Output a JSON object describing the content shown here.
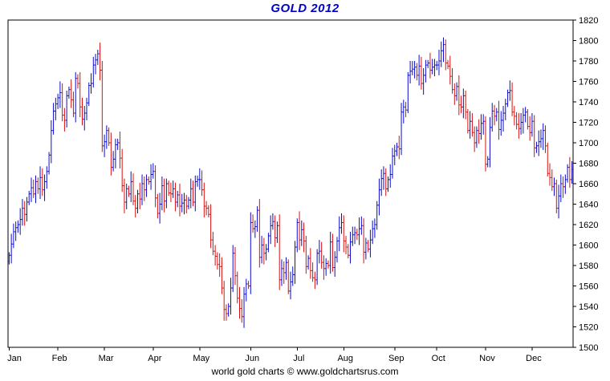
{
  "title": "GOLD 2012",
  "footer": "world gold charts © www.goldchartsrus.com",
  "colors": {
    "title": "#0000cc",
    "up_bar": "#0a0ad0",
    "down_bar": "#d80f0f",
    "axis_text": "#000000",
    "border": "#000000",
    "background": "#ffffff"
  },
  "chart_data": {
    "type": "bar",
    "style": "daily-ohlc-bars",
    "title": "GOLD 2012",
    "notes": "Daily gold price OHLC bars for 2012; blue = up day, red = down day; y-axis (right side) in USD/oz; values estimated from gridline scale 1500-1820 step 20",
    "legend": "none",
    "grid": "off",
    "x_axis": {
      "labels": [
        "Jan",
        "Feb",
        "Mar",
        "Apr",
        "May",
        "Jun",
        "Jul",
        "Aug",
        "Sep",
        "Oct",
        "Nov",
        "Dec"
      ],
      "month_start_index": [
        0,
        22,
        43,
        65,
        86,
        109,
        130,
        151,
        174,
        193,
        215,
        236
      ]
    },
    "y_axis": {
      "side": "right",
      "min": 1500,
      "max": 1820,
      "tick_step": 20,
      "ticks": [
        1500,
        1520,
        1540,
        1560,
        1580,
        1600,
        1620,
        1640,
        1660,
        1680,
        1700,
        1720,
        1740,
        1760,
        1780,
        1800,
        1820
      ]
    },
    "close": [
      1590,
      1601,
      1613,
      1617,
      1620,
      1625,
      1636,
      1630,
      1642,
      1650,
      1656,
      1650,
      1662,
      1655,
      1666,
      1654,
      1662,
      1672,
      1688,
      1712,
      1731,
      1738,
      1744,
      1749,
      1727,
      1722,
      1746,
      1752,
      1742,
      1729,
      1763,
      1758,
      1735,
      1723,
      1729,
      1739,
      1756,
      1758,
      1776,
      1781,
      1787,
      1771,
      1697,
      1701,
      1712,
      1700,
      1676,
      1684,
      1698,
      1700,
      1685,
      1658,
      1642,
      1655,
      1650,
      1662,
      1643,
      1636,
      1650,
      1645,
      1660,
      1654,
      1664,
      1662,
      1669,
      1672,
      1646,
      1631,
      1640,
      1658,
      1643,
      1660,
      1651,
      1650,
      1655,
      1642,
      1649,
      1638,
      1641,
      1644,
      1638,
      1644,
      1655,
      1642,
      1662,
      1664,
      1664,
      1654,
      1638,
      1636,
      1630,
      1605,
      1594,
      1589,
      1581,
      1579,
      1558,
      1537,
      1533,
      1540,
      1558,
      1592,
      1570,
      1548,
      1538,
      1530,
      1552,
      1562,
      1560,
      1622,
      1616,
      1618,
      1634,
      1588,
      1600,
      1592,
      1596,
      1609,
      1619,
      1623,
      1607,
      1619,
      1566,
      1577,
      1573,
      1583,
      1555,
      1564,
      1571,
      1598,
      1622,
      1605,
      1615,
      1604,
      1579,
      1587,
      1575,
      1568,
      1566,
      1592,
      1594,
      1583,
      1577,
      1582,
      1580,
      1603,
      1578,
      1588,
      1604,
      1617,
      1622,
      1604,
      1598,
      1590,
      1603,
      1610,
      1612,
      1610,
      1616,
      1619,
      1593,
      1602,
      1596,
      1605,
      1616,
      1620,
      1639,
      1654,
      1665,
      1670,
      1655,
      1664,
      1669,
      1687,
      1692,
      1696,
      1694,
      1730,
      1735,
      1732,
      1766,
      1770,
      1772,
      1774,
      1766,
      1775,
      1758,
      1766,
      1776,
      1778,
      1771,
      1774,
      1776,
      1776,
      1780,
      1790,
      1796,
      1778,
      1775,
      1765,
      1752,
      1746,
      1755,
      1737,
      1735,
      1746,
      1730,
      1712,
      1721,
      1710,
      1700,
      1712,
      1709,
      1719,
      1721,
      1679,
      1684,
      1715,
      1731,
      1726,
      1730,
      1713,
      1722,
      1729,
      1738,
      1749,
      1751,
      1730,
      1726,
      1718,
      1714,
      1720,
      1727,
      1730,
      1716,
      1710,
      1721,
      1695,
      1697,
      1701,
      1704,
      1712,
      1697,
      1670,
      1666,
      1657,
      1660,
      1636,
      1648,
      1660,
      1657,
      1664,
      1676,
      1664,
      1674
    ]
  }
}
